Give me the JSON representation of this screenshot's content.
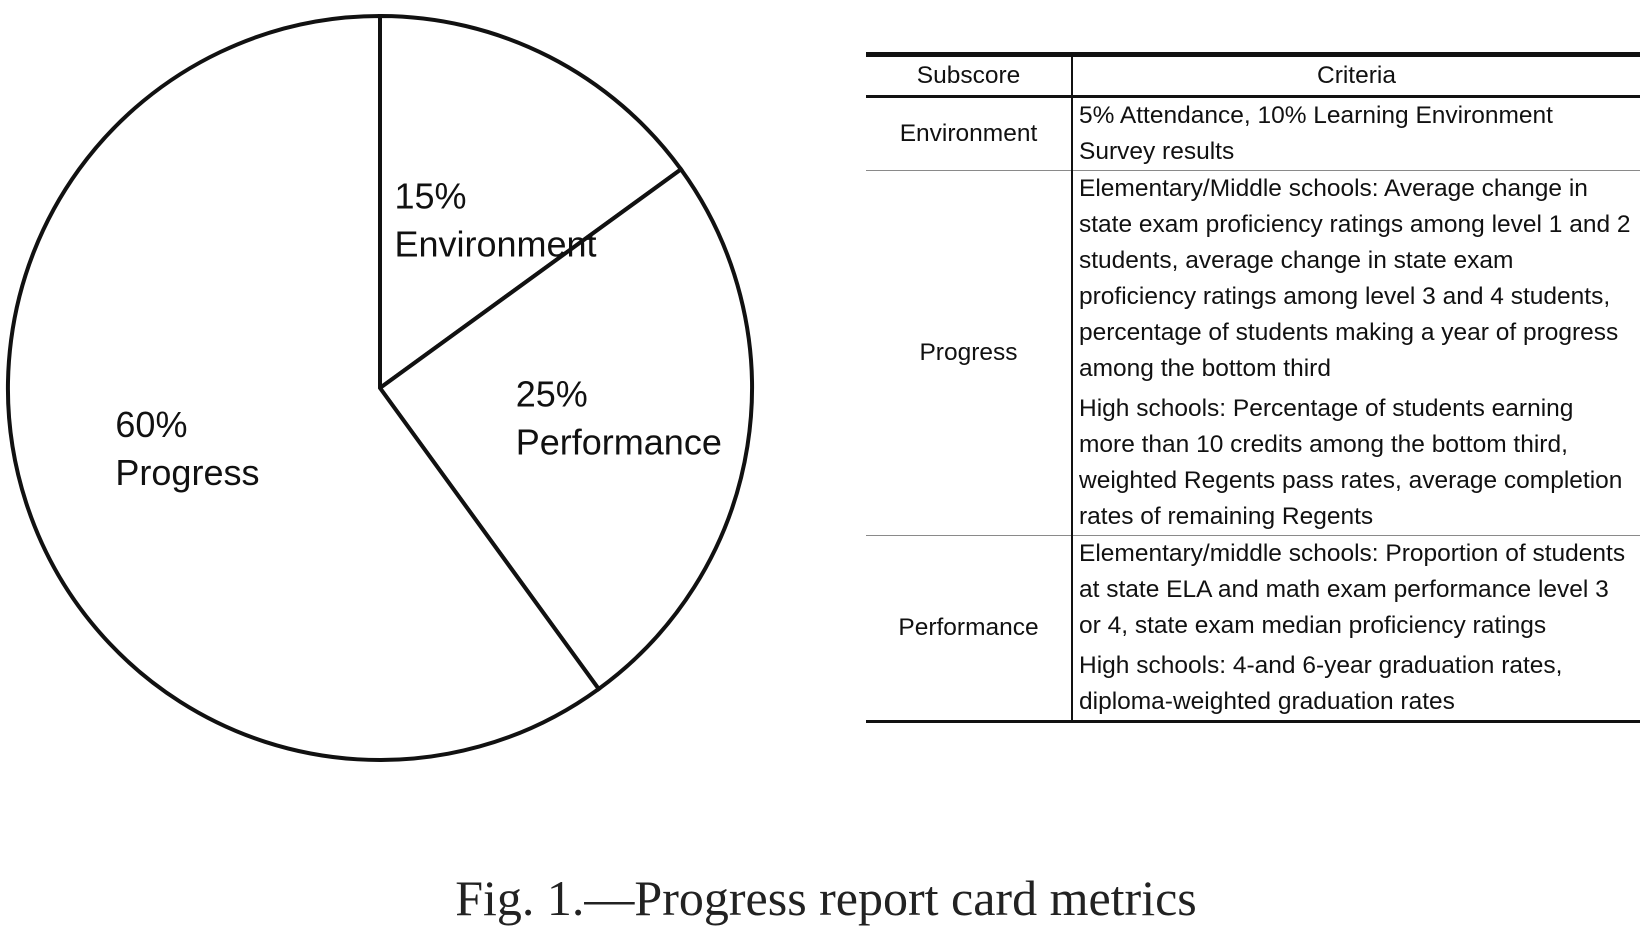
{
  "chart_data": {
    "type": "pie",
    "slices": [
      {
        "label": "Environment",
        "percent_label": "15%",
        "value": 15
      },
      {
        "label": "Performance",
        "percent_label": "25%",
        "value": 25
      },
      {
        "label": "Progress",
        "percent_label": "60%",
        "value": 60
      }
    ],
    "start_angle_deg": 0,
    "direction": "clockwise",
    "colors": {
      "fill": "#ffffff",
      "stroke": "#111111"
    }
  },
  "table": {
    "headers": [
      "Subscore",
      "Criteria"
    ],
    "rows": [
      {
        "subscore": "Environment",
        "criteria": [
          "5% Attendance, 10% Learning Environment Survey results"
        ]
      },
      {
        "subscore": "Progress",
        "criteria": [
          "Elementary/Middle schools: Average change in state exam proficiency ratings among level 1 and 2 students, average change in state exam proficiency ratings among level 3 and 4 students, percentage of students making a year of progress among the bottom third",
          "High schools: Percentage of students earning more than 10 credits among the bottom third, weighted Regents pass rates, average completion rates of remaining Regents"
        ]
      },
      {
        "subscore": "Performance",
        "criteria": [
          "Elementary/middle schools: Proportion of students at state ELA and math exam performance level 3 or 4, state exam median proficiency ratings",
          "High schools: 4-and 6-year graduation rates, diploma-weighted graduation rates"
        ]
      }
    ]
  },
  "caption": "Fig. 1.—Progress report card metrics"
}
